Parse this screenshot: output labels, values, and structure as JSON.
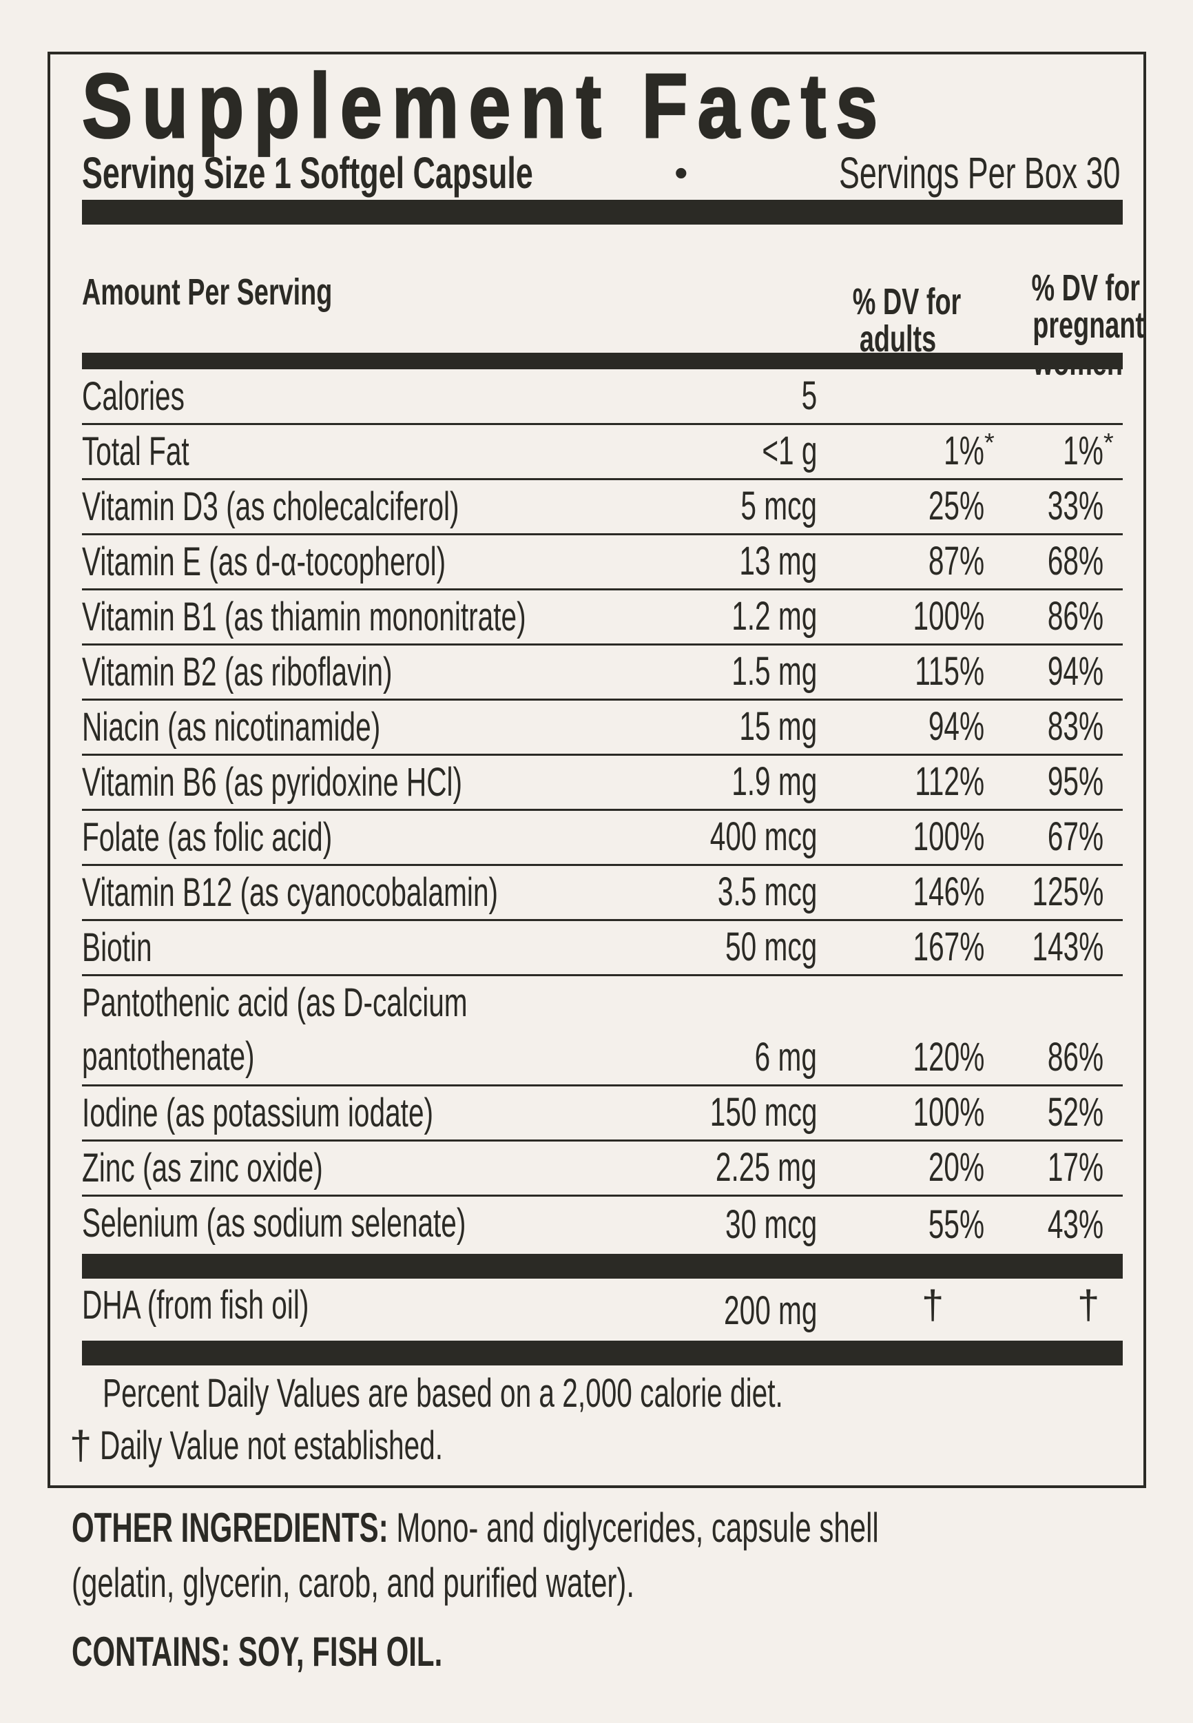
{
  "title": "Supplement Facts",
  "serving_size": "Serving Size 1 Softgel Capsule",
  "bullet": "•",
  "servings_per_box": "Servings Per Box 30",
  "header": {
    "amount": "Amount Per Serving",
    "dv_adults": [
      "% DV for",
      "adults"
    ],
    "dv_pregnant": [
      "% DV for",
      "pregnant",
      "women"
    ]
  },
  "rows": [
    {
      "name": [
        "Calories"
      ],
      "amount": "5",
      "dv_adults": "",
      "dv_pregnant": ""
    },
    {
      "name": [
        "Total Fat"
      ],
      "amount": "<1 g",
      "dv_adults": "1%",
      "dv_adults_mark": "*",
      "dv_pregnant": "1%",
      "dv_pregnant_mark": "*"
    },
    {
      "name": [
        "Vitamin D3 (as cholecalciferol)"
      ],
      "amount": "5 mcg",
      "dv_adults": "25%",
      "dv_pregnant": "33%"
    },
    {
      "name": [
        "Vitamin E (as d-α-tocopherol)"
      ],
      "amount": "13 mg",
      "dv_adults": "87%",
      "dv_pregnant": "68%"
    },
    {
      "name": [
        "Vitamin B1 (as thiamin mononitrate)"
      ],
      "amount": "1.2 mg",
      "dv_adults": "100%",
      "dv_pregnant": "86%"
    },
    {
      "name": [
        "Vitamin B2 (as riboflavin)"
      ],
      "amount": "1.5 mg",
      "dv_adults": "115%",
      "dv_pregnant": "94%"
    },
    {
      "name": [
        "Niacin (as nicotinamide)"
      ],
      "amount": "15 mg",
      "dv_adults": "94%",
      "dv_pregnant": "83%"
    },
    {
      "name": [
        "Vitamin B6 (as pyridoxine HCl)"
      ],
      "amount": "1.9 mg",
      "dv_adults": "112%",
      "dv_pregnant": "95%"
    },
    {
      "name": [
        "Folate (as folic acid)"
      ],
      "amount": "400 mcg",
      "dv_adults": "100%",
      "dv_pregnant": "67%"
    },
    {
      "name": [
        "Vitamin B12 (as cyanocobalamin)"
      ],
      "amount": "3.5 mcg",
      "dv_adults": "146%",
      "dv_pregnant": "125%"
    },
    {
      "name": [
        "Biotin"
      ],
      "amount": "50 mcg",
      "dv_adults": "167%",
      "dv_pregnant": "143%"
    },
    {
      "name": [
        "Pantothenic acid (as D-calcium",
        "pantothenate)"
      ],
      "amount": "6 mg",
      "dv_adults": "120%",
      "dv_pregnant": "86%"
    },
    {
      "name": [
        "Iodine (as potassium iodate)"
      ],
      "amount": "150 mcg",
      "dv_adults": "100%",
      "dv_pregnant": "52%"
    },
    {
      "name": [
        "Zinc (as zinc oxide)"
      ],
      "amount": "2.25 mg",
      "dv_adults": "20%",
      "dv_pregnant": "17%"
    },
    {
      "name": [
        "Selenium (as sodium selenate)"
      ],
      "amount": "30 mcg",
      "dv_adults": "55%",
      "dv_pregnant": "43%"
    }
  ],
  "dha": {
    "name": "DHA (from fish oil)",
    "amount": "200 mg",
    "dv_adults": "†",
    "dv_pregnant": "†"
  },
  "footnotes": {
    "percent": "Percent Daily Values are based on a 2,000 calorie diet.",
    "dagger": "†",
    "dagger_text": "Daily Value not established."
  },
  "other_ingredients": {
    "label": "OTHER INGREDIENTS:",
    "text_line1": "Mono- and diglycerides, capsule shell",
    "text_line2": "(gelatin, glycerin, carob, and purified water)."
  },
  "contains": {
    "label": "CONTAINS:",
    "text": "SOY, FISH OIL."
  },
  "colors": {
    "ink": "#2b2a25",
    "background": "#f4f0eb"
  }
}
